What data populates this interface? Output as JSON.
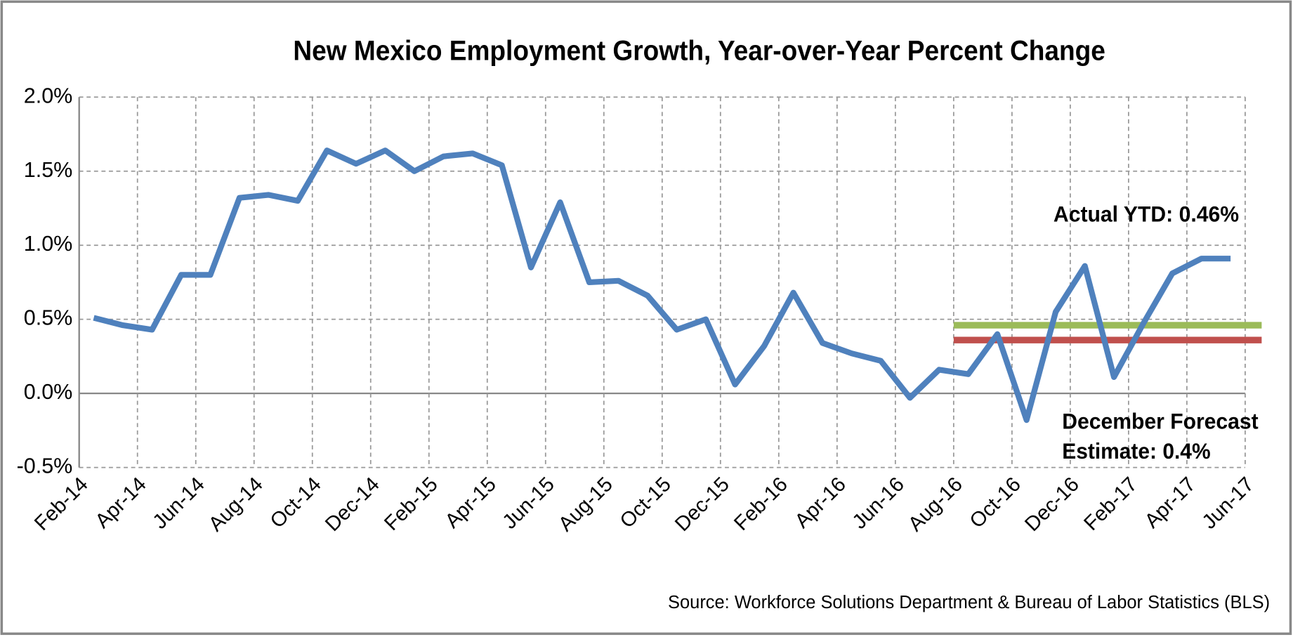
{
  "chart_data": {
    "type": "line",
    "title": "New Mexico Employment Growth, Year-over-Year  Percent Change",
    "source": "Source: Workforce Solutions Department & Bureau of Labor Statistics (BLS)",
    "categories": [
      "Feb-14",
      null,
      "Apr-14",
      null,
      "Jun-14",
      null,
      "Aug-14",
      null,
      "Oct-14",
      null,
      "Dec-14",
      null,
      "Feb-15",
      null,
      "Apr-15",
      null,
      "Jun-15",
      null,
      "Aug-15",
      null,
      "Oct-15",
      null,
      "Dec-15",
      null,
      "Feb-16",
      null,
      "Apr-16",
      null,
      "Jun-16",
      null,
      "Aug-16",
      null,
      "Oct-16",
      null,
      "Dec-16",
      null,
      "Feb-17",
      null,
      "Apr-17",
      null,
      "Jun-17"
    ],
    "series": [
      {
        "color": "#4f81bd",
        "values": [
          0.51,
          0.46,
          0.43,
          0.8,
          0.8,
          1.32,
          1.34,
          1.3,
          1.64,
          1.55,
          1.64,
          1.5,
          1.6,
          1.62,
          1.54,
          0.85,
          1.29,
          0.75,
          0.76,
          0.66,
          0.43,
          0.5,
          0.06,
          0.32,
          0.68,
          0.34,
          0.27,
          0.22,
          -0.03,
          0.16,
          0.13,
          0.4,
          -0.18,
          0.55,
          0.86,
          0.11,
          0.47,
          0.81,
          0.91,
          0.91,
          null
        ]
      }
    ],
    "reference_lines": [
      {
        "value": 0.46,
        "color": "#9bbb59",
        "start": 30,
        "label": "Actual YTD: 0.46%"
      },
      {
        "value": 0.36,
        "color": "#c0504d",
        "start": 30,
        "label": [
          "December Forecast",
          "Estimate: 0.4%"
        ]
      }
    ],
    "ylim": [
      -0.5,
      2.0
    ],
    "yticks": [
      {
        "value": -0.5,
        "label": "-0.5%"
      },
      {
        "value": 0,
        "label": "0.0%"
      },
      {
        "value": 0.5,
        "label": "0.5%"
      },
      {
        "value": 1.0,
        "label": "1.0%"
      },
      {
        "value": 1.5,
        "label": "1.5%"
      },
      {
        "value": 2.0,
        "label": "2.0%"
      }
    ],
    "grid": true
  }
}
